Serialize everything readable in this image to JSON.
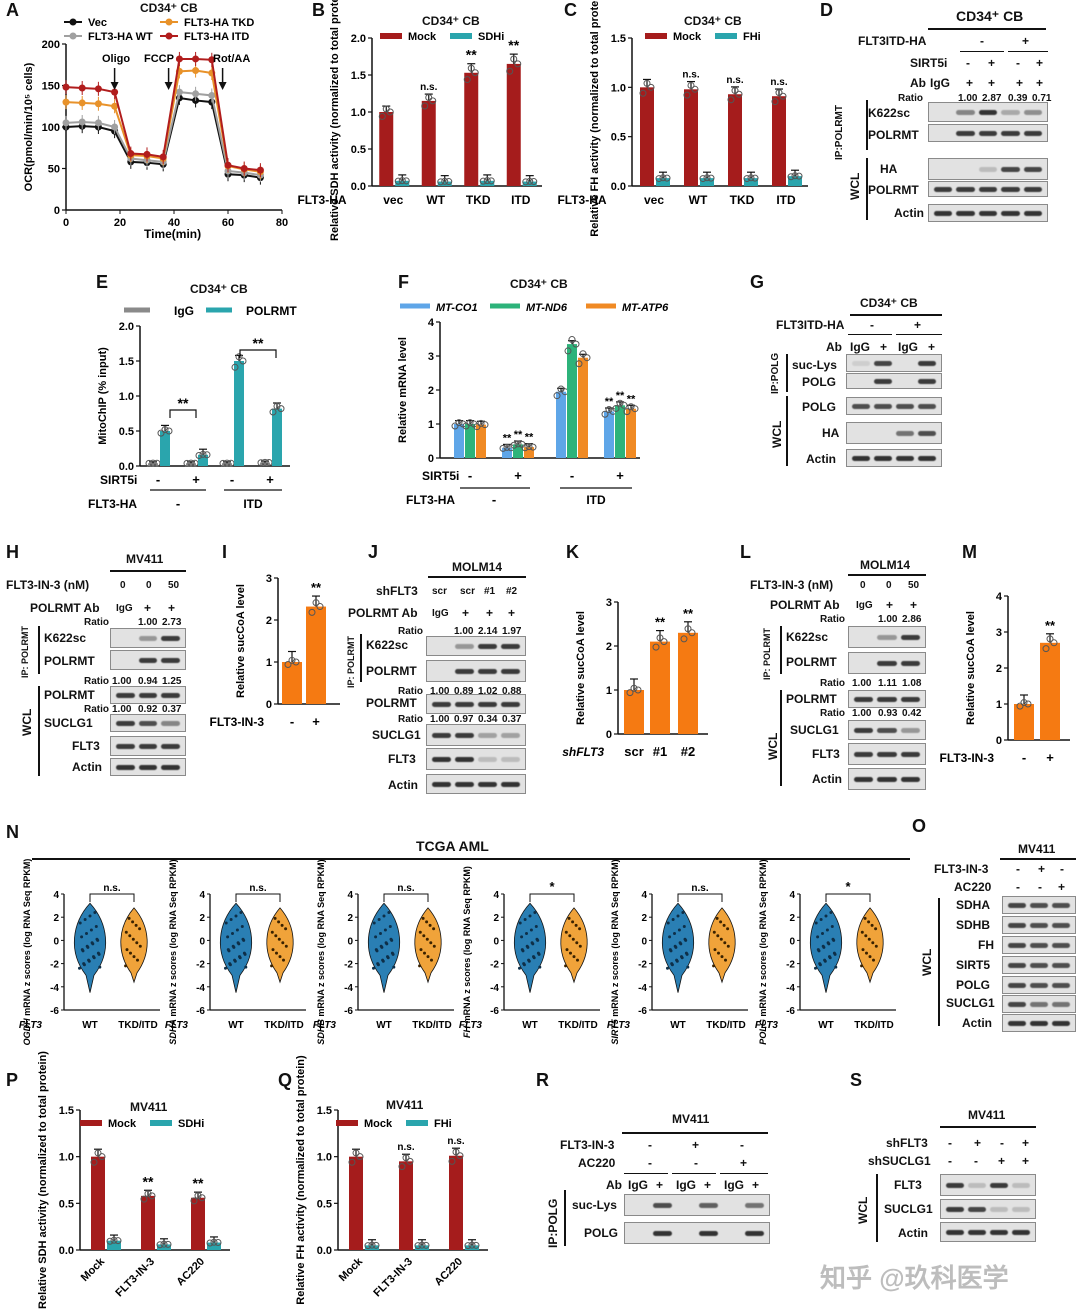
{
  "panels": {
    "A": {
      "label": "A",
      "title": "CD34⁺ CB",
      "legend": [
        "Vec",
        "FLT3-HA TKD",
        "FLT3-HA WT",
        "FLT3-HA ITD"
      ],
      "annot": [
        "Oligo",
        "FCCP",
        "Rot/AA"
      ],
      "ylabel": "OCR(pmol/min/10⁵ cells)",
      "xlabel": "Time(min)"
    },
    "B": {
      "label": "B",
      "title": "CD34⁺ CB",
      "legend": [
        "Mock",
        "SDHi"
      ],
      "ylabel": "Relative SDH activity (normalized to total protein)",
      "rowlabel": "FLT3-HA",
      "cats": [
        "vec",
        "WT",
        "TKD",
        "ITD"
      ],
      "sig": [
        "",
        "n.s.",
        "**",
        "**"
      ]
    },
    "C": {
      "label": "C",
      "title": "CD34⁺ CB",
      "legend": [
        "Mock",
        "FHi"
      ],
      "ylabel": "Relative FH activity (normalized to total protein)",
      "rowlabel": "FLT3-HA",
      "cats": [
        "vec",
        "WT",
        "TKD",
        "ITD"
      ],
      "sig": [
        "",
        "n.s.",
        "n.s.",
        "n.s."
      ]
    },
    "D": {
      "label": "D",
      "title": "CD34⁺ CB",
      "rows": [
        "FLT3ITD-HA",
        "SIRT5i",
        "Ab",
        "Ratio"
      ],
      "ratio": [
        "1.00",
        "2.87",
        "0.39",
        "0.71"
      ],
      "blots": [
        "K622sc",
        "POLRMT",
        "HA",
        "POLRMT",
        "Actin"
      ],
      "groups": [
        "IP:POLRMT",
        "WCL"
      ],
      "ab_vals": [
        "IgG",
        "+",
        "+",
        "+",
        "+"
      ],
      "sirt_vals": [
        "-",
        "+",
        "-",
        "+"
      ],
      "flt_vals": [
        "-",
        "+"
      ]
    },
    "E": {
      "label": "E",
      "title": "CD34⁺ CB",
      "legend": [
        "IgG",
        "POLRMT"
      ],
      "ylabel": "MitoChIP (% input)",
      "rows": [
        "SIRT5i",
        "FLT3-HA"
      ],
      "sirt": [
        "-",
        "+",
        "-",
        "+"
      ],
      "flt": [
        "-",
        "ITD"
      ]
    },
    "F": {
      "label": "F",
      "title": "CD34⁺ CB",
      "legend": [
        "MT-CO1",
        "MT-ND6",
        "MT-ATP6"
      ],
      "ylabel": "Relative mRNA level",
      "rows": [
        "SIRT5i",
        "FLT3-HA"
      ],
      "sirt": [
        "-",
        "+",
        "-",
        "+"
      ],
      "flt": [
        "-",
        "ITD"
      ]
    },
    "G": {
      "label": "G",
      "title": "CD34⁺ CB",
      "rows": [
        "FLT3ITD-HA",
        "Ab"
      ],
      "ab": [
        "IgG",
        "+",
        "IgG",
        "+"
      ],
      "flt": [
        "-",
        "+"
      ],
      "blots": [
        "suc-Lys",
        "POLG",
        "POLG",
        "HA",
        "Actin"
      ],
      "groups": [
        "IP:POLG",
        "WCL"
      ]
    },
    "H": {
      "label": "H",
      "title": "MV411",
      "rows": [
        "FLT3-IN-3 (nM)",
        "POLRMT Ab",
        "Ratio"
      ],
      "conc": [
        "0",
        "0",
        "50"
      ],
      "ab": [
        "IgG",
        "+",
        "+"
      ],
      "ratio1": [
        "1.00",
        "2.73"
      ],
      "ratio2": [
        "1.00",
        "0.94",
        "1.25"
      ],
      "ratio3": [
        "1.00",
        "0.92",
        "0.37"
      ],
      "blots": [
        "K622sc",
        "POLRMT",
        "POLRMT",
        "SUCLG1",
        "FLT3",
        "Actin"
      ],
      "groups": [
        "IP: POLRMT",
        "WCL"
      ]
    },
    "I": {
      "label": "I",
      "ylabel": "Relative sucCoA level",
      "xrow": "FLT3-IN-3",
      "cats": [
        "-",
        "+"
      ],
      "sig": "**"
    },
    "J": {
      "label": "J",
      "title": "MOLM14",
      "rows": [
        "shFLT3",
        "POLRMT Ab",
        "Ratio"
      ],
      "sh": [
        "scr",
        "scr",
        "#1",
        "#2"
      ],
      "ab": [
        "IgG",
        "+",
        "+",
        "+"
      ],
      "ratio1": [
        "1.00",
        "2.14",
        "1.97"
      ],
      "ratio2": [
        "1.00",
        "0.89",
        "1.02",
        "0.88"
      ],
      "ratio3": [
        "1.00",
        "0.97",
        "0.34",
        "0.37"
      ],
      "blots": [
        "K622sc",
        "POLRMT",
        "POLRMT",
        "SUCLG1",
        "FLT3",
        "Actin"
      ],
      "groups": [
        "IP: POLRMT",
        "WCL"
      ]
    },
    "K": {
      "label": "K",
      "ylabel": "Relative sucCoA level",
      "xrow": "shFLT3",
      "cats": [
        "scr",
        "#1",
        "#2"
      ],
      "sig": [
        "",
        "**",
        "**"
      ]
    },
    "L": {
      "label": "L",
      "title": "MOLM14",
      "rows": [
        "FLT3-IN-3 (nM)",
        "POLRMT Ab",
        "Ratio"
      ],
      "conc": [
        "0",
        "0",
        "50"
      ],
      "ab": [
        "IgG",
        "+",
        "+"
      ],
      "ratio1": [
        "1.00",
        "2.86"
      ],
      "ratio2": [
        "1.00",
        "1.11",
        "1.08"
      ],
      "ratio3": [
        "1.00",
        "0.93",
        "0.42"
      ],
      "blots": [
        "K622sc",
        "POLRMT",
        "POLRMT",
        "SUCLG1",
        "FLT3",
        "Actin"
      ],
      "groups": [
        "IP: POLRMT",
        "WCL"
      ]
    },
    "M": {
      "label": "M",
      "ylabel": "Relative sucCoA level",
      "xrow": "FLT3-IN-3",
      "cats": [
        "-",
        "+"
      ],
      "sig": "**"
    },
    "N": {
      "label": "N",
      "title": "TCGA AML",
      "genes": [
        "OGDH",
        "SDHA",
        "SDHB",
        "FH",
        "SIRT5",
        "POLG"
      ],
      "ylab_suffix": " mRNA z scores (log RNA Seq RPKM)",
      "sig": [
        "n.s.",
        "n.s.",
        "n.s.",
        "*",
        "n.s.",
        "*"
      ],
      "xrow": "FLT3",
      "cats": [
        "WT",
        "TKD/ITD"
      ]
    },
    "O": {
      "label": "O",
      "title": "MV411",
      "rows": [
        "FLT3-IN-3",
        "AC220"
      ],
      "in3": [
        "-",
        "+",
        "-"
      ],
      "ac": [
        "-",
        "-",
        "+"
      ],
      "blots": [
        "SDHA",
        "SDHB",
        "FH",
        "SIRT5",
        "POLG",
        "SUCLG1",
        "Actin"
      ],
      "group": "WCL"
    },
    "P": {
      "label": "P",
      "title": "MV411",
      "legend": [
        "Mock",
        "SDHi"
      ],
      "ylabel": "Relative SDH activity (normalized to total protein)",
      "cats": [
        "Mock",
        "FLT3-IN-3",
        "AC220"
      ],
      "sig": [
        "",
        "**",
        "**"
      ]
    },
    "Q": {
      "label": "Q",
      "title": "MV411",
      "legend": [
        "Mock",
        "FHi"
      ],
      "ylabel": "Relative FH activity (normalized to total protein)",
      "cats": [
        "Mock",
        "FLT3-IN-3",
        "AC220"
      ],
      "sig": [
        "",
        "n.s.",
        "n.s."
      ]
    },
    "R": {
      "label": "R",
      "title": "MV411",
      "rows": [
        "FLT3-IN-3",
        "AC220",
        "Ab"
      ],
      "in3": [
        "-",
        "+",
        "-"
      ],
      "ac": [
        "-",
        "-",
        "+"
      ],
      "ab": [
        "IgG",
        "+",
        "IgG",
        "+",
        "IgG",
        "+"
      ],
      "blots": [
        "suc-Lys",
        "POLG"
      ],
      "group": "IP:POLG"
    },
    "S": {
      "label": "S",
      "title": "MV411",
      "rows": [
        "shFLT3",
        "shSUCLG1"
      ],
      "shf": [
        "-",
        "+",
        "-",
        "+"
      ],
      "shs": [
        "-",
        "-",
        "+",
        "+"
      ],
      "blots": [
        "FLT3",
        "SUCLG1",
        "Actin"
      ],
      "group": "WCL"
    }
  },
  "colors": {
    "mock": "#a51c1c",
    "inhib": "#2aa5ad",
    "vec": "#111111",
    "wt": "#a0a0a0",
    "tkd": "#e8922a",
    "itd": "#b11d1d",
    "igg": "#8a8a8a",
    "co1": "#5fa6e8",
    "nd6": "#2db37a",
    "atp6": "#f08a24",
    "orange": "#f57a12"
  },
  "watermark": "知乎 @玖科医学",
  "chart_data": [
    {
      "panel": "A",
      "type": "line",
      "title": "CD34⁺ CB",
      "xlabel": "Time(min)",
      "ylabel": "OCR(pmol/min/10⁵ cells)",
      "xlim": [
        0,
        80
      ],
      "ylim": [
        0,
        200
      ],
      "x": [
        0,
        6,
        12,
        18,
        24,
        30,
        36,
        42,
        48,
        54,
        60,
        66,
        72
      ],
      "series": [
        {
          "name": "Vec",
          "values": [
            100,
            101,
            100,
            95,
            58,
            57,
            55,
            135,
            132,
            130,
            43,
            42,
            39
          ]
        },
        {
          "name": "FLT3-HA WT",
          "values": [
            105,
            106,
            105,
            100,
            62,
            60,
            58,
            142,
            140,
            138,
            47,
            45,
            42
          ]
        },
        {
          "name": "FLT3-HA TKD",
          "values": [
            130,
            129,
            128,
            125,
            66,
            65,
            62,
            167,
            168,
            165,
            53,
            49,
            46
          ]
        },
        {
          "name": "FLT3-HA ITD",
          "values": [
            148,
            147,
            146,
            142,
            68,
            67,
            64,
            182,
            182,
            181,
            54,
            50,
            48
          ]
        }
      ]
    },
    {
      "panel": "B",
      "type": "bar",
      "title": "CD34⁺ CB",
      "ylabel": "Relative SDH activity (normalized to total protein)",
      "categories": [
        "vec",
        "WT",
        "TKD",
        "ITD"
      ],
      "ylim": [
        0,
        2.0
      ],
      "series": [
        {
          "name": "Mock",
          "values": [
            1.0,
            1.15,
            1.53,
            1.65
          ]
        },
        {
          "name": "SDHi",
          "values": [
            0.07,
            0.06,
            0.07,
            0.06
          ]
        }
      ]
    },
    {
      "panel": "C",
      "type": "bar",
      "title": "CD34⁺ CB",
      "ylabel": "Relative FH activity (normalized to total protein)",
      "categories": [
        "vec",
        "WT",
        "TKD",
        "ITD"
      ],
      "ylim": [
        0,
        1.5
      ],
      "series": [
        {
          "name": "Mock",
          "values": [
            1.0,
            0.98,
            0.93,
            0.91
          ]
        },
        {
          "name": "FHi",
          "values": [
            0.08,
            0.08,
            0.08,
            0.1
          ]
        }
      ]
    },
    {
      "panel": "E",
      "type": "bar",
      "title": "CD34⁺ CB",
      "ylabel": "MitoChIP (% input)",
      "categories": [
        "- / -",
        "+ / -",
        "- / ITD",
        "+ / ITD"
      ],
      "ylim": [
        0,
        2.0
      ],
      "series": [
        {
          "name": "IgG",
          "values": [
            0.04,
            0.04,
            0.04,
            0.05
          ]
        },
        {
          "name": "POLRMT",
          "values": [
            0.5,
            0.16,
            1.5,
            0.82
          ]
        }
      ]
    },
    {
      "panel": "F",
      "type": "bar",
      "title": "CD34⁺ CB",
      "ylabel": "Relative mRNA level",
      "categories": [
        "- / -",
        "+ / -",
        "- / ITD",
        "+ / ITD"
      ],
      "ylim": [
        0,
        4
      ],
      "series": [
        {
          "name": "MT-CO1",
          "values": [
            1.0,
            0.3,
            1.95,
            1.37
          ]
        },
        {
          "name": "MT-ND6",
          "values": [
            1.0,
            0.4,
            3.35,
            1.55
          ]
        },
        {
          "name": "MT-ATP6",
          "values": [
            0.98,
            0.32,
            2.95,
            1.45
          ]
        }
      ]
    },
    {
      "panel": "I",
      "type": "bar",
      "ylabel": "Relative sucCoA level",
      "categories": [
        "-",
        "+"
      ],
      "ylim": [
        0,
        3
      ],
      "values": [
        1.0,
        2.32
      ]
    },
    {
      "panel": "K",
      "type": "bar",
      "ylabel": "Relative sucCoA level",
      "categories": [
        "scr",
        "#1",
        "#2"
      ],
      "ylim": [
        0,
        3
      ],
      "values": [
        1.0,
        2.1,
        2.3
      ]
    },
    {
      "panel": "M",
      "type": "bar",
      "ylabel": "Relative sucCoA level",
      "categories": [
        "-",
        "+"
      ],
      "ylim": [
        0,
        4
      ],
      "values": [
        1.0,
        2.7
      ]
    },
    {
      "panel": "P",
      "type": "bar",
      "title": "MV411",
      "ylabel": "Relative SDH activity (normalized to total protein)",
      "categories": [
        "Mock",
        "FLT3-IN-3",
        "AC220"
      ],
      "ylim": [
        0,
        1.5
      ],
      "series": [
        {
          "name": "Mock",
          "values": [
            1.0,
            0.58,
            0.56
          ]
        },
        {
          "name": "SDHi",
          "values": [
            0.1,
            0.06,
            0.08
          ]
        }
      ]
    },
    {
      "panel": "Q",
      "type": "bar",
      "title": "MV411",
      "ylabel": "Relative FH activity (normalized to total protein)",
      "categories": [
        "Mock",
        "FLT3-IN-3",
        "AC220"
      ],
      "ylim": [
        0,
        1.5
      ],
      "series": [
        {
          "name": "Mock",
          "values": [
            1.0,
            0.95,
            1.01
          ]
        },
        {
          "name": "FHi",
          "values": [
            0.05,
            0.05,
            0.05
          ]
        }
      ]
    }
  ]
}
